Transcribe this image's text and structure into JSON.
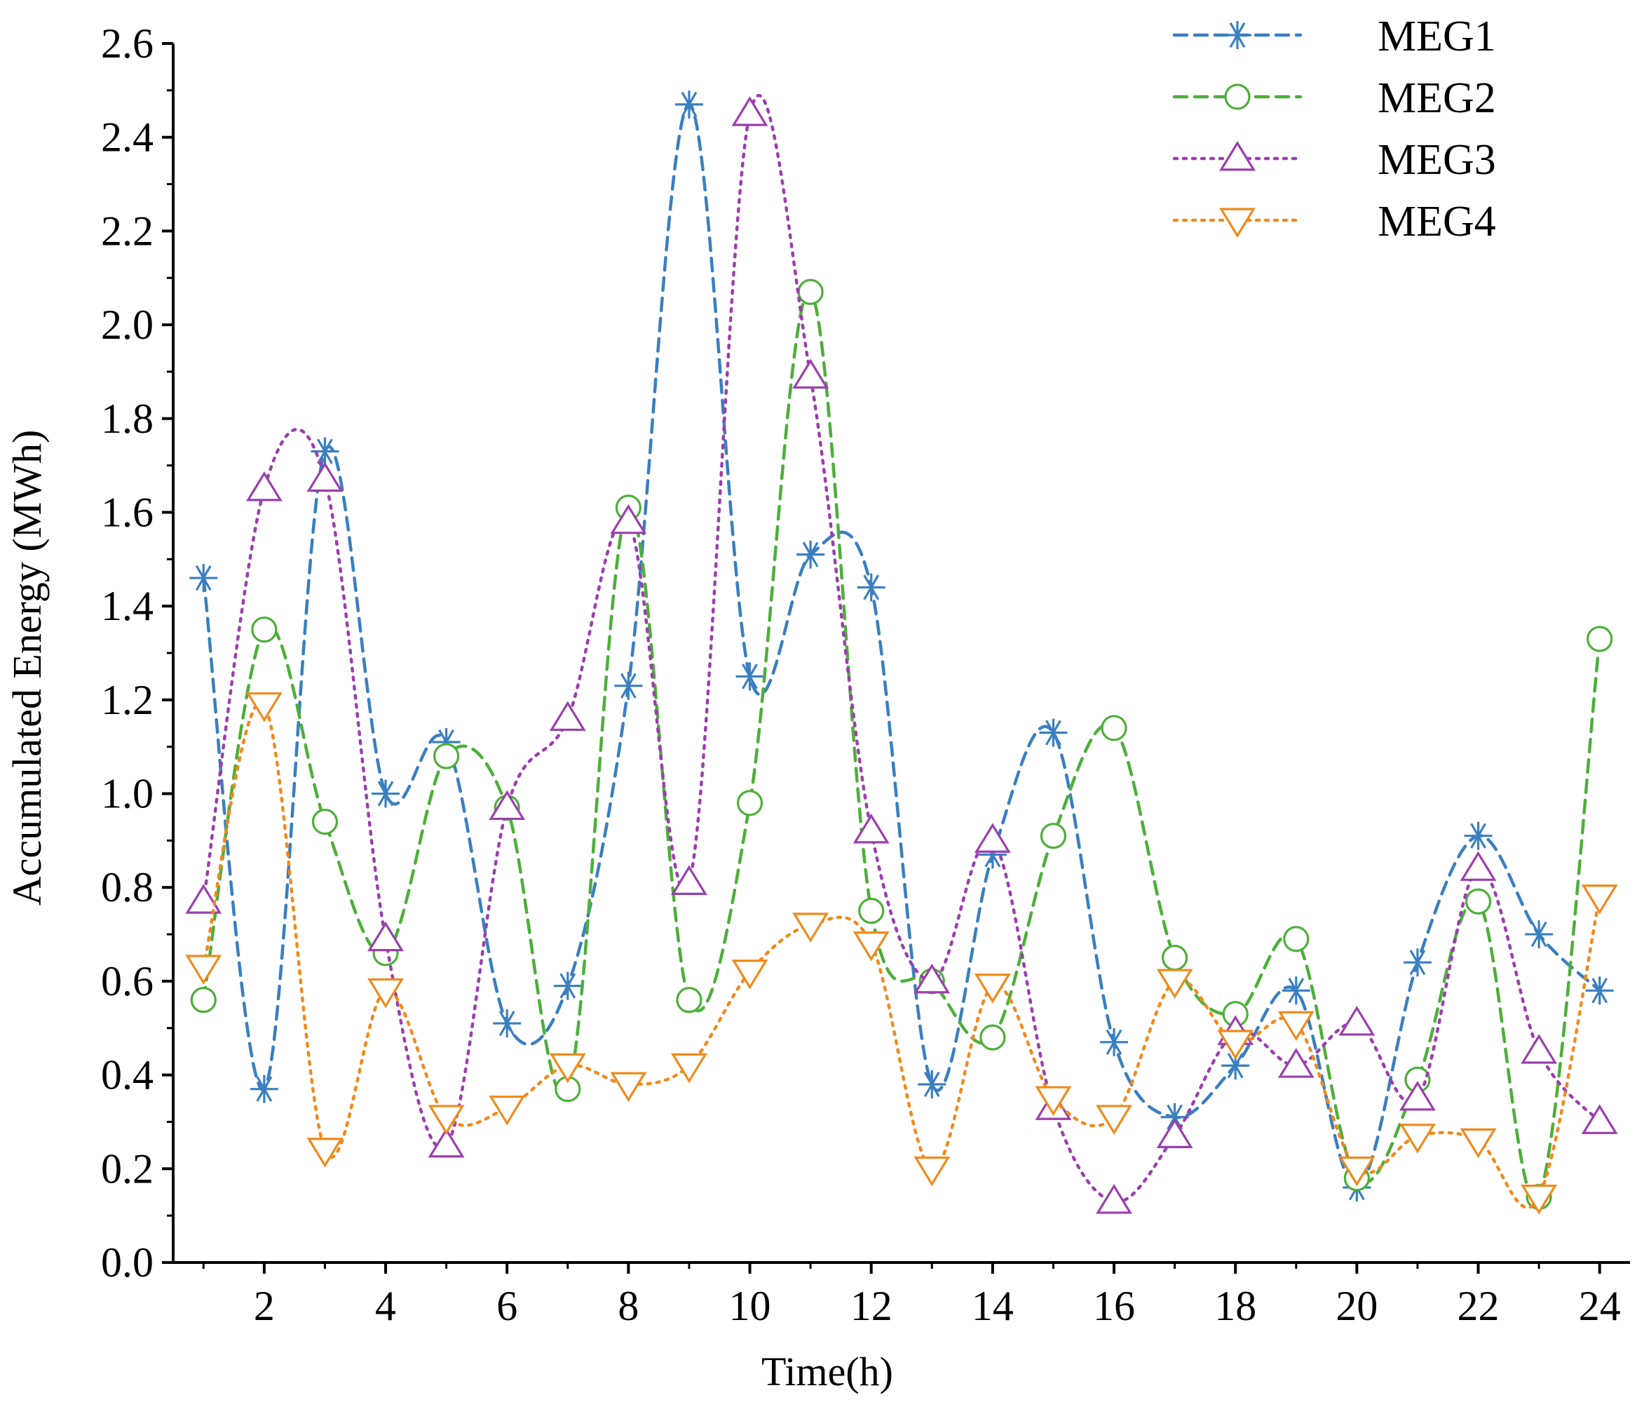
{
  "chart_data": {
    "type": "line",
    "title": "",
    "xlabel": "Time(h)",
    "ylabel": "Accumulated Energy (MWh)",
    "xlim": [
      0.5,
      24.5
    ],
    "ylim": [
      0,
      2.6
    ],
    "grid": false,
    "legend_position": "top-right",
    "x": [
      1,
      2,
      3,
      4,
      5,
      6,
      7,
      8,
      9,
      10,
      11,
      12,
      13,
      14,
      15,
      16,
      17,
      18,
      19,
      20,
      21,
      22,
      23,
      24
    ],
    "x_ticks": [
      2,
      4,
      6,
      8,
      10,
      12,
      14,
      16,
      18,
      20,
      22,
      24
    ],
    "x_tick_labels": [
      "2",
      "4",
      "6",
      "8",
      "10",
      "12",
      "14",
      "16",
      "18",
      "20",
      "22",
      "24"
    ],
    "y_ticks": [
      0,
      0.2,
      0.4,
      0.6,
      0.8,
      1.0,
      1.2,
      1.4,
      1.6,
      1.8,
      2.0,
      2.2,
      2.4,
      2.6
    ],
    "y_tick_labels": [
      "0.0",
      "0.2",
      "0.4",
      "0.6",
      "0.8",
      "1.0",
      "1.2",
      "1.4",
      "1.6",
      "1.8",
      "2.0",
      "2.2",
      "2.4",
      "2.6"
    ],
    "series": [
      {
        "name": "MEG1",
        "color": "#3a7fc0",
        "line_style": "dashed",
        "marker": "asterisk",
        "values": [
          1.46,
          0.37,
          1.73,
          1.0,
          1.11,
          0.51,
          0.59,
          1.23,
          2.47,
          1.25,
          1.51,
          1.44,
          0.38,
          0.87,
          1.13,
          0.47,
          0.31,
          0.42,
          0.58,
          0.16,
          0.64,
          0.91,
          0.7,
          0.58
        ]
      },
      {
        "name": "MEG2",
        "color": "#4daf3a",
        "line_style": "dashed",
        "marker": "circle",
        "values": [
          0.56,
          1.35,
          0.94,
          0.66,
          1.08,
          0.97,
          0.37,
          1.61,
          0.56,
          0.98,
          2.07,
          0.75,
          0.6,
          0.48,
          0.91,
          1.14,
          0.65,
          0.53,
          0.69,
          0.18,
          0.39,
          0.77,
          0.14,
          1.33
        ]
      },
      {
        "name": "MEG3",
        "color": "#9b3fae",
        "line_style": "dotted",
        "marker": "triangle-up",
        "values": [
          0.77,
          1.65,
          1.67,
          0.69,
          0.25,
          0.97,
          1.16,
          1.58,
          0.81,
          2.45,
          1.89,
          0.92,
          0.6,
          0.9,
          0.33,
          0.13,
          0.27,
          0.49,
          0.42,
          0.51,
          0.35,
          0.84,
          0.45,
          0.3
        ]
      },
      {
        "name": "MEG4",
        "color": "#f08a1c",
        "line_style": "dotted",
        "marker": "triangle-down",
        "values": [
          0.63,
          1.19,
          0.24,
          0.58,
          0.31,
          0.33,
          0.42,
          0.38,
          0.42,
          0.62,
          0.72,
          0.68,
          0.2,
          0.59,
          0.35,
          0.31,
          0.6,
          0.47,
          0.51,
          0.2,
          0.27,
          0.26,
          0.14,
          0.78
        ]
      }
    ]
  }
}
